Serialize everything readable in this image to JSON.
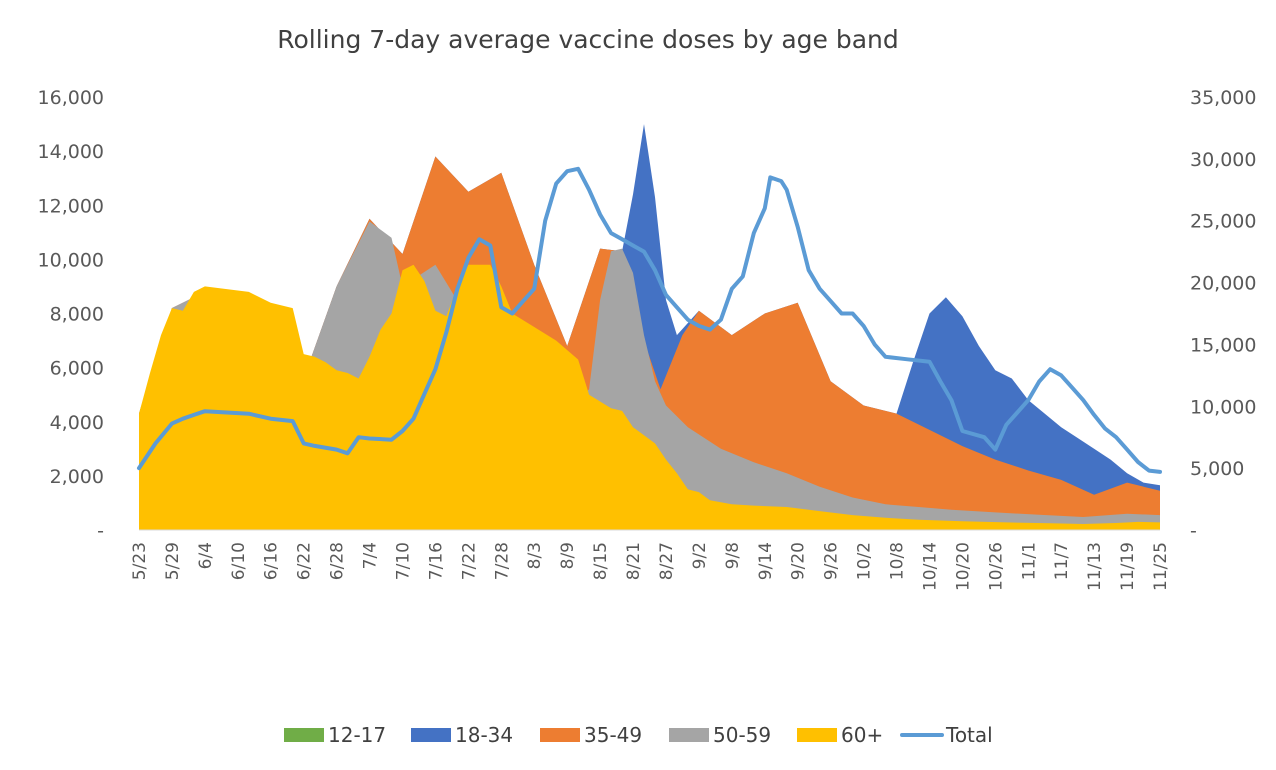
{
  "chart_data": {
    "type": "area",
    "title": "Rolling 7-day average vaccine doses by age band",
    "xlabel": "",
    "ylabel": "",
    "stacked": false,
    "y_left": {
      "min": 0,
      "max": 16000,
      "ticks": [
        "-",
        "2,000",
        "4,000",
        "6,000",
        "8,000",
        "10,000",
        "12,000",
        "14,000",
        "16,000"
      ]
    },
    "y_right": {
      "min": 0,
      "max": 35000,
      "ticks": [
        "-",
        "5,000",
        "10,000",
        "15,000",
        "20,000",
        "25,000",
        "30,000",
        "35,000"
      ]
    },
    "x_ticks": [
      "5/23",
      "5/29",
      "6/4",
      "6/10",
      "6/16",
      "6/22",
      "6/28",
      "7/4",
      "7/10",
      "7/16",
      "7/22",
      "7/28",
      "8/3",
      "8/9",
      "8/15",
      "8/21",
      "8/27",
      "9/2",
      "9/8",
      "9/14",
      "9/20",
      "9/26",
      "10/2",
      "10/8",
      "10/14",
      "10/20",
      "10/26",
      "11/1",
      "11/7",
      "11/13",
      "11/19",
      "11/25"
    ],
    "grid": false,
    "legend_position": "bottom",
    "series": [
      {
        "name": "12-17",
        "color": "#70AD47",
        "type": "area",
        "axis": "left",
        "points": [
          [
            0,
            0
          ],
          [
            186,
            0
          ]
        ]
      },
      {
        "name": "18-34",
        "color": "#4472C4",
        "type": "area",
        "axis": "left",
        "points": [
          [
            0,
            4300
          ],
          [
            6,
            8200
          ],
          [
            12,
            8800
          ],
          [
            18,
            8400
          ],
          [
            24,
            7500
          ],
          [
            30,
            5600
          ],
          [
            36,
            9000
          ],
          [
            42,
            11500
          ],
          [
            48,
            10200
          ],
          [
            54,
            13800
          ],
          [
            60,
            12500
          ],
          [
            66,
            13200
          ],
          [
            72,
            9800
          ],
          [
            78,
            6800
          ],
          [
            84,
            10400
          ],
          [
            88,
            10300
          ],
          [
            90,
            12400
          ],
          [
            92,
            15000
          ],
          [
            94,
            12300
          ],
          [
            96,
            8500
          ],
          [
            98,
            7200
          ],
          [
            102,
            8100
          ],
          [
            108,
            7200
          ],
          [
            114,
            8000
          ],
          [
            120,
            8400
          ],
          [
            126,
            5500
          ],
          [
            132,
            4600
          ],
          [
            138,
            4300
          ],
          [
            141,
            6200
          ],
          [
            144,
            8000
          ],
          [
            147,
            8600
          ],
          [
            150,
            7900
          ],
          [
            153,
            6800
          ],
          [
            156,
            5900
          ],
          [
            159,
            5600
          ],
          [
            162,
            4800
          ],
          [
            165,
            4300
          ],
          [
            168,
            3800
          ],
          [
            171,
            3400
          ],
          [
            174,
            3000
          ],
          [
            177,
            2600
          ],
          [
            180,
            2100
          ],
          [
            183,
            1750
          ],
          [
            186,
            1650
          ]
        ]
      },
      {
        "name": "35-49",
        "color": "#ED7D31",
        "type": "area",
        "axis": "left",
        "points": [
          [
            0,
            4300
          ],
          [
            6,
            8200
          ],
          [
            12,
            8800
          ],
          [
            18,
            8400
          ],
          [
            24,
            7500
          ],
          [
            30,
            5600
          ],
          [
            36,
            9000
          ],
          [
            42,
            11500
          ],
          [
            48,
            10200
          ],
          [
            54,
            13800
          ],
          [
            60,
            12500
          ],
          [
            66,
            13200
          ],
          [
            72,
            9800
          ],
          [
            78,
            6800
          ],
          [
            84,
            10400
          ],
          [
            88,
            10300
          ],
          [
            92,
            7000
          ],
          [
            95,
            5200
          ],
          [
            99,
            7200
          ],
          [
            102,
            8100
          ],
          [
            108,
            7200
          ],
          [
            114,
            8000
          ],
          [
            120,
            8400
          ],
          [
            126,
            5500
          ],
          [
            132,
            4600
          ],
          [
            138,
            4300
          ],
          [
            144,
            3700
          ],
          [
            150,
            3100
          ],
          [
            156,
            2600
          ],
          [
            162,
            2200
          ],
          [
            168,
            1850
          ],
          [
            174,
            1300
          ],
          [
            180,
            1750
          ],
          [
            186,
            1450
          ]
        ]
      },
      {
        "name": "50-59",
        "color": "#A5A5A5",
        "type": "area",
        "axis": "left",
        "points": [
          [
            0,
            4300
          ],
          [
            6,
            8200
          ],
          [
            12,
            8800
          ],
          [
            18,
            8400
          ],
          [
            24,
            7500
          ],
          [
            30,
            5600
          ],
          [
            36,
            9000
          ],
          [
            42,
            11400
          ],
          [
            46,
            10800
          ],
          [
            48,
            9000
          ],
          [
            54,
            9800
          ],
          [
            60,
            7800
          ],
          [
            66,
            6800
          ],
          [
            72,
            5000
          ],
          [
            78,
            4400
          ],
          [
            82,
            5200
          ],
          [
            84,
            8500
          ],
          [
            86,
            10300
          ],
          [
            88,
            10400
          ],
          [
            90,
            9500
          ],
          [
            92,
            7200
          ],
          [
            94,
            5500
          ],
          [
            96,
            4600
          ],
          [
            100,
            3800
          ],
          [
            106,
            3000
          ],
          [
            112,
            2500
          ],
          [
            118,
            2100
          ],
          [
            124,
            1600
          ],
          [
            130,
            1200
          ],
          [
            136,
            950
          ],
          [
            142,
            850
          ],
          [
            148,
            750
          ],
          [
            156,
            650
          ],
          [
            164,
            560
          ],
          [
            172,
            480
          ],
          [
            180,
            600
          ],
          [
            186,
            550
          ]
        ]
      },
      {
        "name": "60+",
        "color": "#FFC000",
        "type": "area",
        "axis": "left",
        "points": [
          [
            0,
            4300
          ],
          [
            2,
            5800
          ],
          [
            4,
            7200
          ],
          [
            6,
            8200
          ],
          [
            8,
            8100
          ],
          [
            10,
            8800
          ],
          [
            12,
            9000
          ],
          [
            16,
            8900
          ],
          [
            20,
            8800
          ],
          [
            24,
            8400
          ],
          [
            28,
            8200
          ],
          [
            30,
            6500
          ],
          [
            32,
            6400
          ],
          [
            34,
            6200
          ],
          [
            36,
            5900
          ],
          [
            38,
            5800
          ],
          [
            40,
            5600
          ],
          [
            42,
            6400
          ],
          [
            44,
            7400
          ],
          [
            46,
            8000
          ],
          [
            48,
            9600
          ],
          [
            50,
            9800
          ],
          [
            52,
            9200
          ],
          [
            54,
            8100
          ],
          [
            56,
            7900
          ],
          [
            58,
            9000
          ],
          [
            60,
            9800
          ],
          [
            64,
            9800
          ],
          [
            66,
            9000
          ],
          [
            68,
            8000
          ],
          [
            72,
            7500
          ],
          [
            76,
            7000
          ],
          [
            80,
            6300
          ],
          [
            82,
            5000
          ],
          [
            86,
            4500
          ],
          [
            88,
            4400
          ],
          [
            90,
            3800
          ],
          [
            94,
            3200
          ],
          [
            96,
            2600
          ],
          [
            98,
            2100
          ],
          [
            100,
            1500
          ],
          [
            102,
            1400
          ],
          [
            104,
            1100
          ],
          [
            108,
            950
          ],
          [
            112,
            900
          ],
          [
            118,
            850
          ],
          [
            124,
            700
          ],
          [
            130,
            550
          ],
          [
            136,
            450
          ],
          [
            142,
            380
          ],
          [
            150,
            320
          ],
          [
            158,
            280
          ],
          [
            166,
            250
          ],
          [
            172,
            220
          ],
          [
            178,
            260
          ],
          [
            182,
            300
          ],
          [
            186,
            280
          ]
        ]
      },
      {
        "name": "Total",
        "color": "#5B9BD5",
        "type": "line",
        "axis": "right",
        "points": [
          [
            0,
            5000
          ],
          [
            3,
            7000
          ],
          [
            6,
            8600
          ],
          [
            8,
            9000
          ],
          [
            10,
            9300
          ],
          [
            12,
            9600
          ],
          [
            16,
            9500
          ],
          [
            20,
            9400
          ],
          [
            24,
            9000
          ],
          [
            28,
            8800
          ],
          [
            30,
            7000
          ],
          [
            32,
            6800
          ],
          [
            36,
            6500
          ],
          [
            38,
            6200
          ],
          [
            40,
            7500
          ],
          [
            42,
            7400
          ],
          [
            46,
            7300
          ],
          [
            48,
            8000
          ],
          [
            50,
            9000
          ],
          [
            52,
            11000
          ],
          [
            54,
            13000
          ],
          [
            56,
            16000
          ],
          [
            58,
            19500
          ],
          [
            60,
            22000
          ],
          [
            62,
            23500
          ],
          [
            64,
            23000
          ],
          [
            66,
            18000
          ],
          [
            68,
            17500
          ],
          [
            70,
            18500
          ],
          [
            72,
            19500
          ],
          [
            74,
            25000
          ],
          [
            76,
            28000
          ],
          [
            78,
            29000
          ],
          [
            80,
            29200
          ],
          [
            82,
            27500
          ],
          [
            84,
            25500
          ],
          [
            86,
            24000
          ],
          [
            88,
            23500
          ],
          [
            90,
            23000
          ],
          [
            92,
            22500
          ],
          [
            94,
            21000
          ],
          [
            96,
            19000
          ],
          [
            98,
            18000
          ],
          [
            100,
            17000
          ],
          [
            102,
            16500
          ],
          [
            104,
            16200
          ],
          [
            106,
            17000
          ],
          [
            108,
            19500
          ],
          [
            110,
            20500
          ],
          [
            112,
            24000
          ],
          [
            114,
            26000
          ],
          [
            115,
            28500
          ],
          [
            117,
            28200
          ],
          [
            118,
            27500
          ],
          [
            120,
            24500
          ],
          [
            122,
            21000
          ],
          [
            124,
            19500
          ],
          [
            126,
            18500
          ],
          [
            128,
            17500
          ],
          [
            130,
            17500
          ],
          [
            132,
            16500
          ],
          [
            134,
            15000
          ],
          [
            136,
            14000
          ],
          [
            140,
            13800
          ],
          [
            144,
            13600
          ],
          [
            146,
            12000
          ],
          [
            148,
            10500
          ],
          [
            150,
            8000
          ],
          [
            154,
            7500
          ],
          [
            156,
            6500
          ],
          [
            158,
            8500
          ],
          [
            160,
            9500
          ],
          [
            162,
            10500
          ],
          [
            164,
            12000
          ],
          [
            166,
            13000
          ],
          [
            168,
            12500
          ],
          [
            170,
            11500
          ],
          [
            172,
            10500
          ],
          [
            174,
            9300
          ],
          [
            176,
            8200
          ],
          [
            178,
            7500
          ],
          [
            180,
            6500
          ],
          [
            182,
            5500
          ],
          [
            184,
            4800
          ],
          [
            186,
            4700
          ]
        ]
      }
    ],
    "legend": [
      {
        "name": "12-17",
        "color": "#70AD47",
        "kind": "box"
      },
      {
        "name": "18-34",
        "color": "#4472C4",
        "kind": "box"
      },
      {
        "name": "35-49",
        "color": "#ED7D31",
        "kind": "box"
      },
      {
        "name": "50-59",
        "color": "#A5A5A5",
        "kind": "box"
      },
      {
        "name": "60+",
        "color": "#FFC000",
        "kind": "box"
      },
      {
        "name": "Total",
        "color": "#5B9BD5",
        "kind": "line"
      }
    ]
  }
}
